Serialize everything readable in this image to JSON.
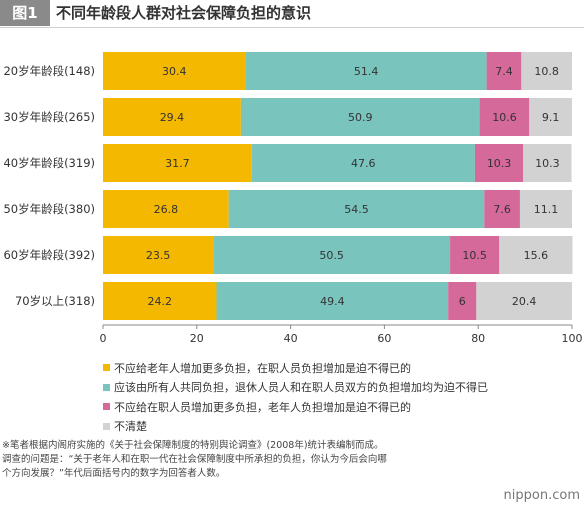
{
  "header": {
    "tag": "图1",
    "title": "不同年龄段人群对社会保障负担的意识"
  },
  "chart_data": {
    "type": "bar",
    "orientation": "horizontal",
    "stacked": true,
    "categories": [
      "20岁年龄段(148)",
      "30岁年龄段(265)",
      "40岁年龄段(319)",
      "50岁年龄段(380)",
      "60岁年龄段(392)",
      "70岁以上(318)"
    ],
    "series": [
      {
        "name": "不应给老年人增加更多负担，在职人员负担增加是迫不得已的",
        "color": "#f5b800",
        "values": [
          30.4,
          29.4,
          31.7,
          26.8,
          23.5,
          24.2
        ]
      },
      {
        "name": "应该由所有人共同负担，退休人员人和在职人员双方的负担增加均为迫不得已",
        "color": "#79c4bc",
        "values": [
          51.4,
          50.9,
          47.6,
          54.5,
          50.5,
          49.4
        ]
      },
      {
        "name": "不应给在职人员增加更多负担，老年人负担增加是迫不得已的",
        "color": "#d4699a",
        "values": [
          7.4,
          10.6,
          10.3,
          7.6,
          10.5,
          6
        ]
      },
      {
        "name": "不清楚",
        "color": "#d2d2d2",
        "values": [
          10.8,
          9.1,
          10.3,
          11.1,
          15.6,
          20.4
        ]
      }
    ],
    "xlim": [
      0,
      100
    ],
    "xticks": [
      0,
      20,
      40,
      60,
      80,
      100
    ],
    "unit": "(%)",
    "grid": false,
    "legend_position": "bottom"
  },
  "footnote": {
    "line1": "※笔者根据内阁府实施的《关于社会保障制度的特别舆论调查》(2008年)统计表编制而成。",
    "line2": "调查的问题是：“关于老年人和在职一代在社会保障制度中所承担的负担，你认为今后会向哪",
    "line3": "个方向发展？”年代后面括号内的数字为回答者人数。"
  },
  "brand": "nippon.com"
}
